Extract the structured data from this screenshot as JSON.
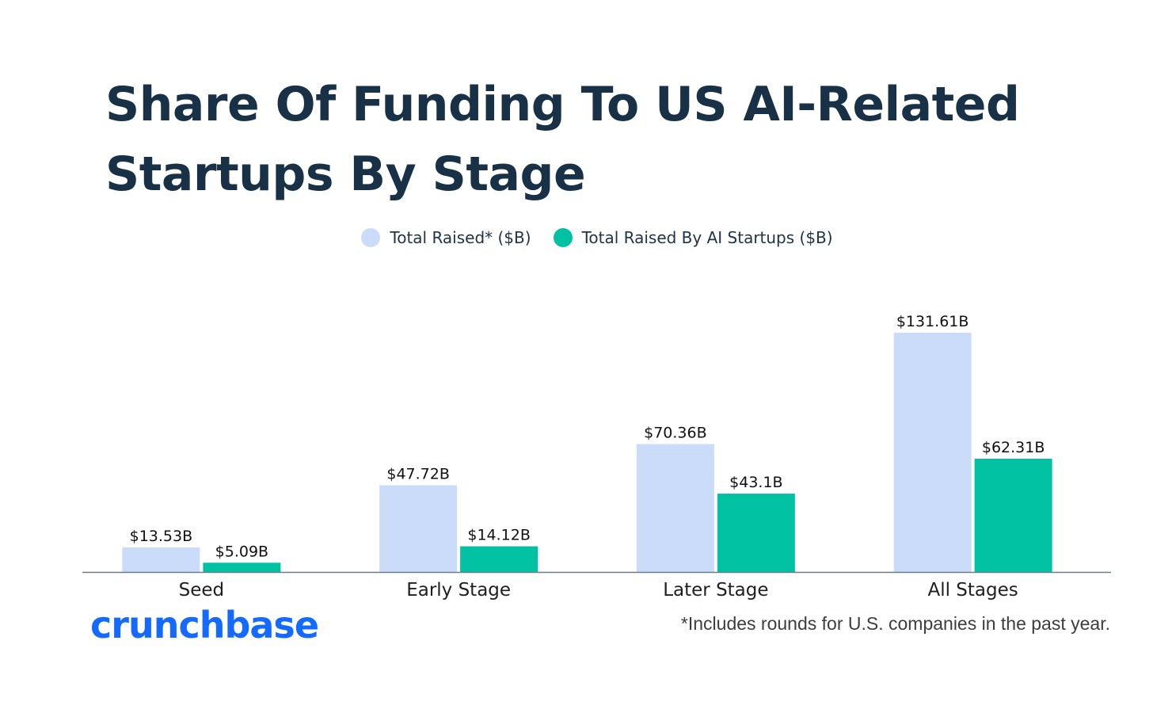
{
  "title": "Share Of Funding To US AI-Related Startups By Stage",
  "brand": "crunchbase",
  "footnote": "*Includes rounds for U.S. companies in the past year.",
  "colors": {
    "title": "#193146",
    "total_raised": "#CBDCFB",
    "ai_startups": "#00C2A3",
    "axis": "#6B7C8A",
    "brand": "#146AFF"
  },
  "chart_data": {
    "type": "bar",
    "title": "Share Of Funding To US AI-Related Startups By Stage",
    "categories": [
      "Seed",
      "Early Stage",
      "Later Stage",
      "All Stages"
    ],
    "series": [
      {
        "name": "Total Raised* ($B)",
        "values": [
          13.53,
          47.72,
          70.36,
          131.61
        ],
        "labels": [
          "$13.53B",
          "$47.72B",
          "$70.36B",
          "$131.61B"
        ],
        "color": "#CBDCFB"
      },
      {
        "name": "Total Raised By AI Startups ($B)",
        "values": [
          5.09,
          14.12,
          43.1,
          62.31
        ],
        "labels": [
          "$5.09B",
          "$14.12B",
          "$43.1B",
          "$62.31B"
        ],
        "color": "#00C2A3"
      }
    ],
    "xlabel": "",
    "ylabel": "",
    "ylim": [
      0,
      131.61
    ],
    "grid": false,
    "legend": "top-center"
  }
}
